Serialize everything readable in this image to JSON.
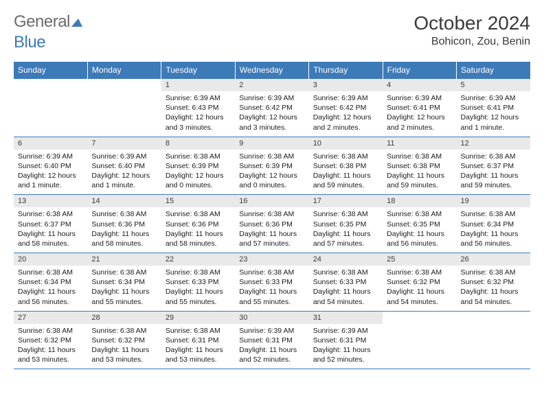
{
  "brand": {
    "name_a": "General",
    "name_b": "Blue"
  },
  "title": "October 2024",
  "location": "Bohicon, Zou, Benin",
  "colors": {
    "accent": "#3d7ab8",
    "header_bg": "#3d7ab8",
    "header_text": "#ffffff",
    "date_bg": "#e9e9e9",
    "body_text": "#1a1a1a",
    "title_text": "#3a3a3a",
    "page_bg": "#ffffff"
  },
  "day_names": [
    "Sunday",
    "Monday",
    "Tuesday",
    "Wednesday",
    "Thursday",
    "Friday",
    "Saturday"
  ],
  "weeks": [
    [
      null,
      null,
      {
        "d": "1",
        "sr": "6:39 AM",
        "ss": "6:43 PM",
        "dl": "12 hours and 3 minutes."
      },
      {
        "d": "2",
        "sr": "6:39 AM",
        "ss": "6:42 PM",
        "dl": "12 hours and 3 minutes."
      },
      {
        "d": "3",
        "sr": "6:39 AM",
        "ss": "6:42 PM",
        "dl": "12 hours and 2 minutes."
      },
      {
        "d": "4",
        "sr": "6:39 AM",
        "ss": "6:41 PM",
        "dl": "12 hours and 2 minutes."
      },
      {
        "d": "5",
        "sr": "6:39 AM",
        "ss": "6:41 PM",
        "dl": "12 hours and 1 minute."
      }
    ],
    [
      {
        "d": "6",
        "sr": "6:39 AM",
        "ss": "6:40 PM",
        "dl": "12 hours and 1 minute."
      },
      {
        "d": "7",
        "sr": "6:39 AM",
        "ss": "6:40 PM",
        "dl": "12 hours and 1 minute."
      },
      {
        "d": "8",
        "sr": "6:38 AM",
        "ss": "6:39 PM",
        "dl": "12 hours and 0 minutes."
      },
      {
        "d": "9",
        "sr": "6:38 AM",
        "ss": "6:39 PM",
        "dl": "12 hours and 0 minutes."
      },
      {
        "d": "10",
        "sr": "6:38 AM",
        "ss": "6:38 PM",
        "dl": "11 hours and 59 minutes."
      },
      {
        "d": "11",
        "sr": "6:38 AM",
        "ss": "6:38 PM",
        "dl": "11 hours and 59 minutes."
      },
      {
        "d": "12",
        "sr": "6:38 AM",
        "ss": "6:37 PM",
        "dl": "11 hours and 59 minutes."
      }
    ],
    [
      {
        "d": "13",
        "sr": "6:38 AM",
        "ss": "6:37 PM",
        "dl": "11 hours and 58 minutes."
      },
      {
        "d": "14",
        "sr": "6:38 AM",
        "ss": "6:36 PM",
        "dl": "11 hours and 58 minutes."
      },
      {
        "d": "15",
        "sr": "6:38 AM",
        "ss": "6:36 PM",
        "dl": "11 hours and 58 minutes."
      },
      {
        "d": "16",
        "sr": "6:38 AM",
        "ss": "6:36 PM",
        "dl": "11 hours and 57 minutes."
      },
      {
        "d": "17",
        "sr": "6:38 AM",
        "ss": "6:35 PM",
        "dl": "11 hours and 57 minutes."
      },
      {
        "d": "18",
        "sr": "6:38 AM",
        "ss": "6:35 PM",
        "dl": "11 hours and 56 minutes."
      },
      {
        "d": "19",
        "sr": "6:38 AM",
        "ss": "6:34 PM",
        "dl": "11 hours and 56 minutes."
      }
    ],
    [
      {
        "d": "20",
        "sr": "6:38 AM",
        "ss": "6:34 PM",
        "dl": "11 hours and 56 minutes."
      },
      {
        "d": "21",
        "sr": "6:38 AM",
        "ss": "6:34 PM",
        "dl": "11 hours and 55 minutes."
      },
      {
        "d": "22",
        "sr": "6:38 AM",
        "ss": "6:33 PM",
        "dl": "11 hours and 55 minutes."
      },
      {
        "d": "23",
        "sr": "6:38 AM",
        "ss": "6:33 PM",
        "dl": "11 hours and 55 minutes."
      },
      {
        "d": "24",
        "sr": "6:38 AM",
        "ss": "6:33 PM",
        "dl": "11 hours and 54 minutes."
      },
      {
        "d": "25",
        "sr": "6:38 AM",
        "ss": "6:32 PM",
        "dl": "11 hours and 54 minutes."
      },
      {
        "d": "26",
        "sr": "6:38 AM",
        "ss": "6:32 PM",
        "dl": "11 hours and 54 minutes."
      }
    ],
    [
      {
        "d": "27",
        "sr": "6:38 AM",
        "ss": "6:32 PM",
        "dl": "11 hours and 53 minutes."
      },
      {
        "d": "28",
        "sr": "6:38 AM",
        "ss": "6:32 PM",
        "dl": "11 hours and 53 minutes."
      },
      {
        "d": "29",
        "sr": "6:38 AM",
        "ss": "6:31 PM",
        "dl": "11 hours and 53 minutes."
      },
      {
        "d": "30",
        "sr": "6:39 AM",
        "ss": "6:31 PM",
        "dl": "11 hours and 52 minutes."
      },
      {
        "d": "31",
        "sr": "6:39 AM",
        "ss": "6:31 PM",
        "dl": "11 hours and 52 minutes."
      },
      null,
      null
    ]
  ]
}
